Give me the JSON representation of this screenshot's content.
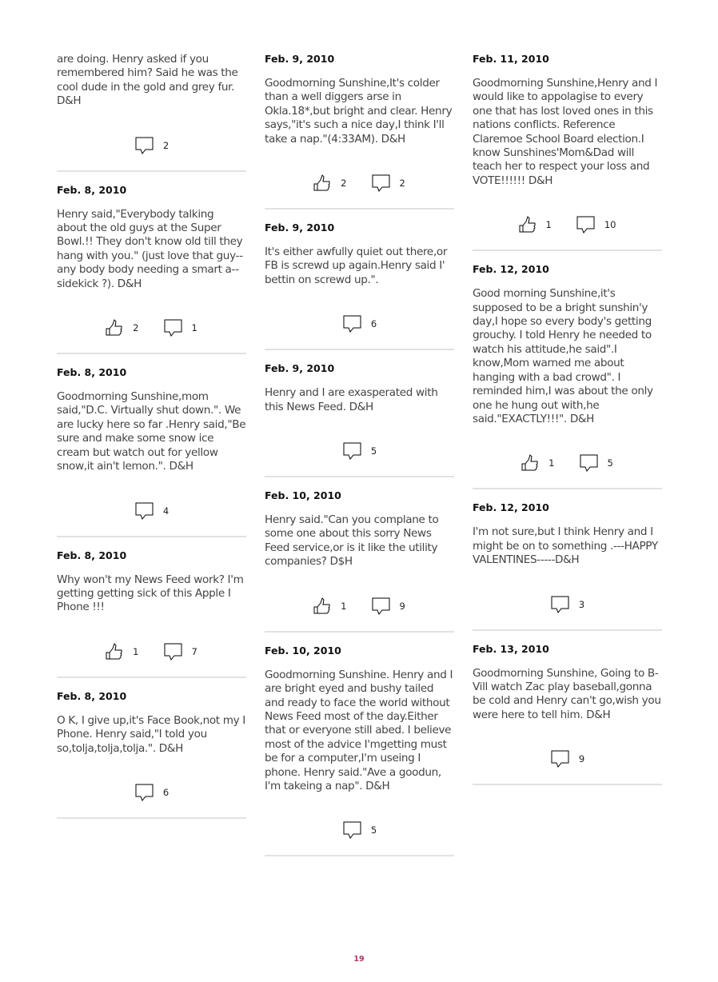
{
  "columns": [
    [
      {
        "date": "",
        "text": "are doing. Henry asked if you remembered him? Said he was the cool dude in the gold and grey fur. D&H",
        "likes": null,
        "comments": "2"
      },
      {
        "date": "Feb. 8, 2010",
        "text": "Henry said,\"Everybody talking about the old guys at the Super Bowl.!! They don't know old till they hang with you.\" (just love that guy--any body body needing a smart a-- sidekick ?). D&H",
        "likes": "2",
        "comments": "1"
      },
      {
        "date": "Feb. 8, 2010",
        "text": "Goodmorning Sunshine,mom said,\"D.C. Virtually shut down.\". We are lucky here so far .Henry said,\"Be sure and make some snow ice cream but watch out for yellow snow,it ain't lemon.\". D&H",
        "likes": null,
        "comments": "4"
      },
      {
        "date": "Feb. 8, 2010",
        "text": "Why won't my News Feed work? I'm getting getting sick of this Apple I Phone !!!",
        "likes": "1",
        "comments": "7"
      },
      {
        "date": "Feb. 8, 2010",
        "text": "O K, I give up,it's Face Book,not my I Phone. Henry said,\"I told you so,tolja,tolja,tolja.\". D&H",
        "likes": null,
        "comments": "6"
      }
    ],
    [
      {
        "date": "Feb. 9, 2010",
        "text": "Goodmorning Sunshine,It's colder than a well diggers arse in Okla.18*,but bright and clear. Henry says,\"it's such a nice day,I think I'll take a nap.\"(4:33AM). D&H",
        "likes": "2",
        "comments": "2"
      },
      {
        "date": "Feb. 9, 2010",
        "text": "It's either awfully quiet out there,or FB is screwd up again.Henry said I' bettin on screwd up.\".",
        "likes": null,
        "comments": "6"
      },
      {
        "date": "Feb. 9, 2010",
        "text": "Henry and I are exasperated with this News Feed. D&H",
        "likes": null,
        "comments": "5"
      },
      {
        "date": "Feb. 10, 2010",
        "text": "Henry said.\"Can you complane to some one about this sorry News Feed service,or is it like the utility companies? D$H",
        "likes": "1",
        "comments": "9"
      },
      {
        "date": "Feb. 10, 2010",
        "text": "Goodmorning Sunshine. Henry and I are bright eyed and bushy tailed and ready to face the world without News Feed most of the day.Either that or everyone still abed. I believe most of the advice I'mgetting must be for a computer,I'm useing I phone. Henry said.\"Ave a goodun, I'm takeing a nap\". D&H",
        "likes": null,
        "comments": "5"
      }
    ],
    [
      {
        "date": "Feb. 11, 2010",
        "text": "Goodmorning Sunshine,Henry and I would like to appolagise to every one that has lost loved ones in this nations conflicts. Reference Claremoe School Board election.I know Sunshines'Mom&Dad will teach her to respect your loss and VOTE!!!!!! D&H",
        "likes": "1",
        "comments": "10"
      },
      {
        "date": "Feb. 12, 2010",
        "text": "Good morning Sunshine,it's supposed to be a bright sunshin'y day,I hope so every body's getting grouchy. I told Henry he needed to watch his attitude,he said\".I know,Mom warned me about hanging with a bad crowd\". I reminded him,I was about the only one he hung out with,he said.\"EXACTLY!!!\". D&H",
        "likes": "1",
        "comments": "5"
      },
      {
        "date": "Feb. 12, 2010",
        "text": "I'm not sure,but I think Henry and I might be on to something .---HAPPY VALENTINES-----D&H",
        "likes": null,
        "comments": "3"
      },
      {
        "date": "Feb. 13, 2010",
        "text": "Goodmorning Sunshine, Going to B-Vill watch Zac play baseball,gonna be cold and Henry can't go,wish you were here to tell him. D&H",
        "likes": null,
        "comments": "9"
      }
    ]
  ],
  "page_number": "19",
  "colors": {
    "text": "#444444",
    "date": "#111111",
    "divider": "#e2e2e2",
    "page_number": "#b0355a"
  }
}
